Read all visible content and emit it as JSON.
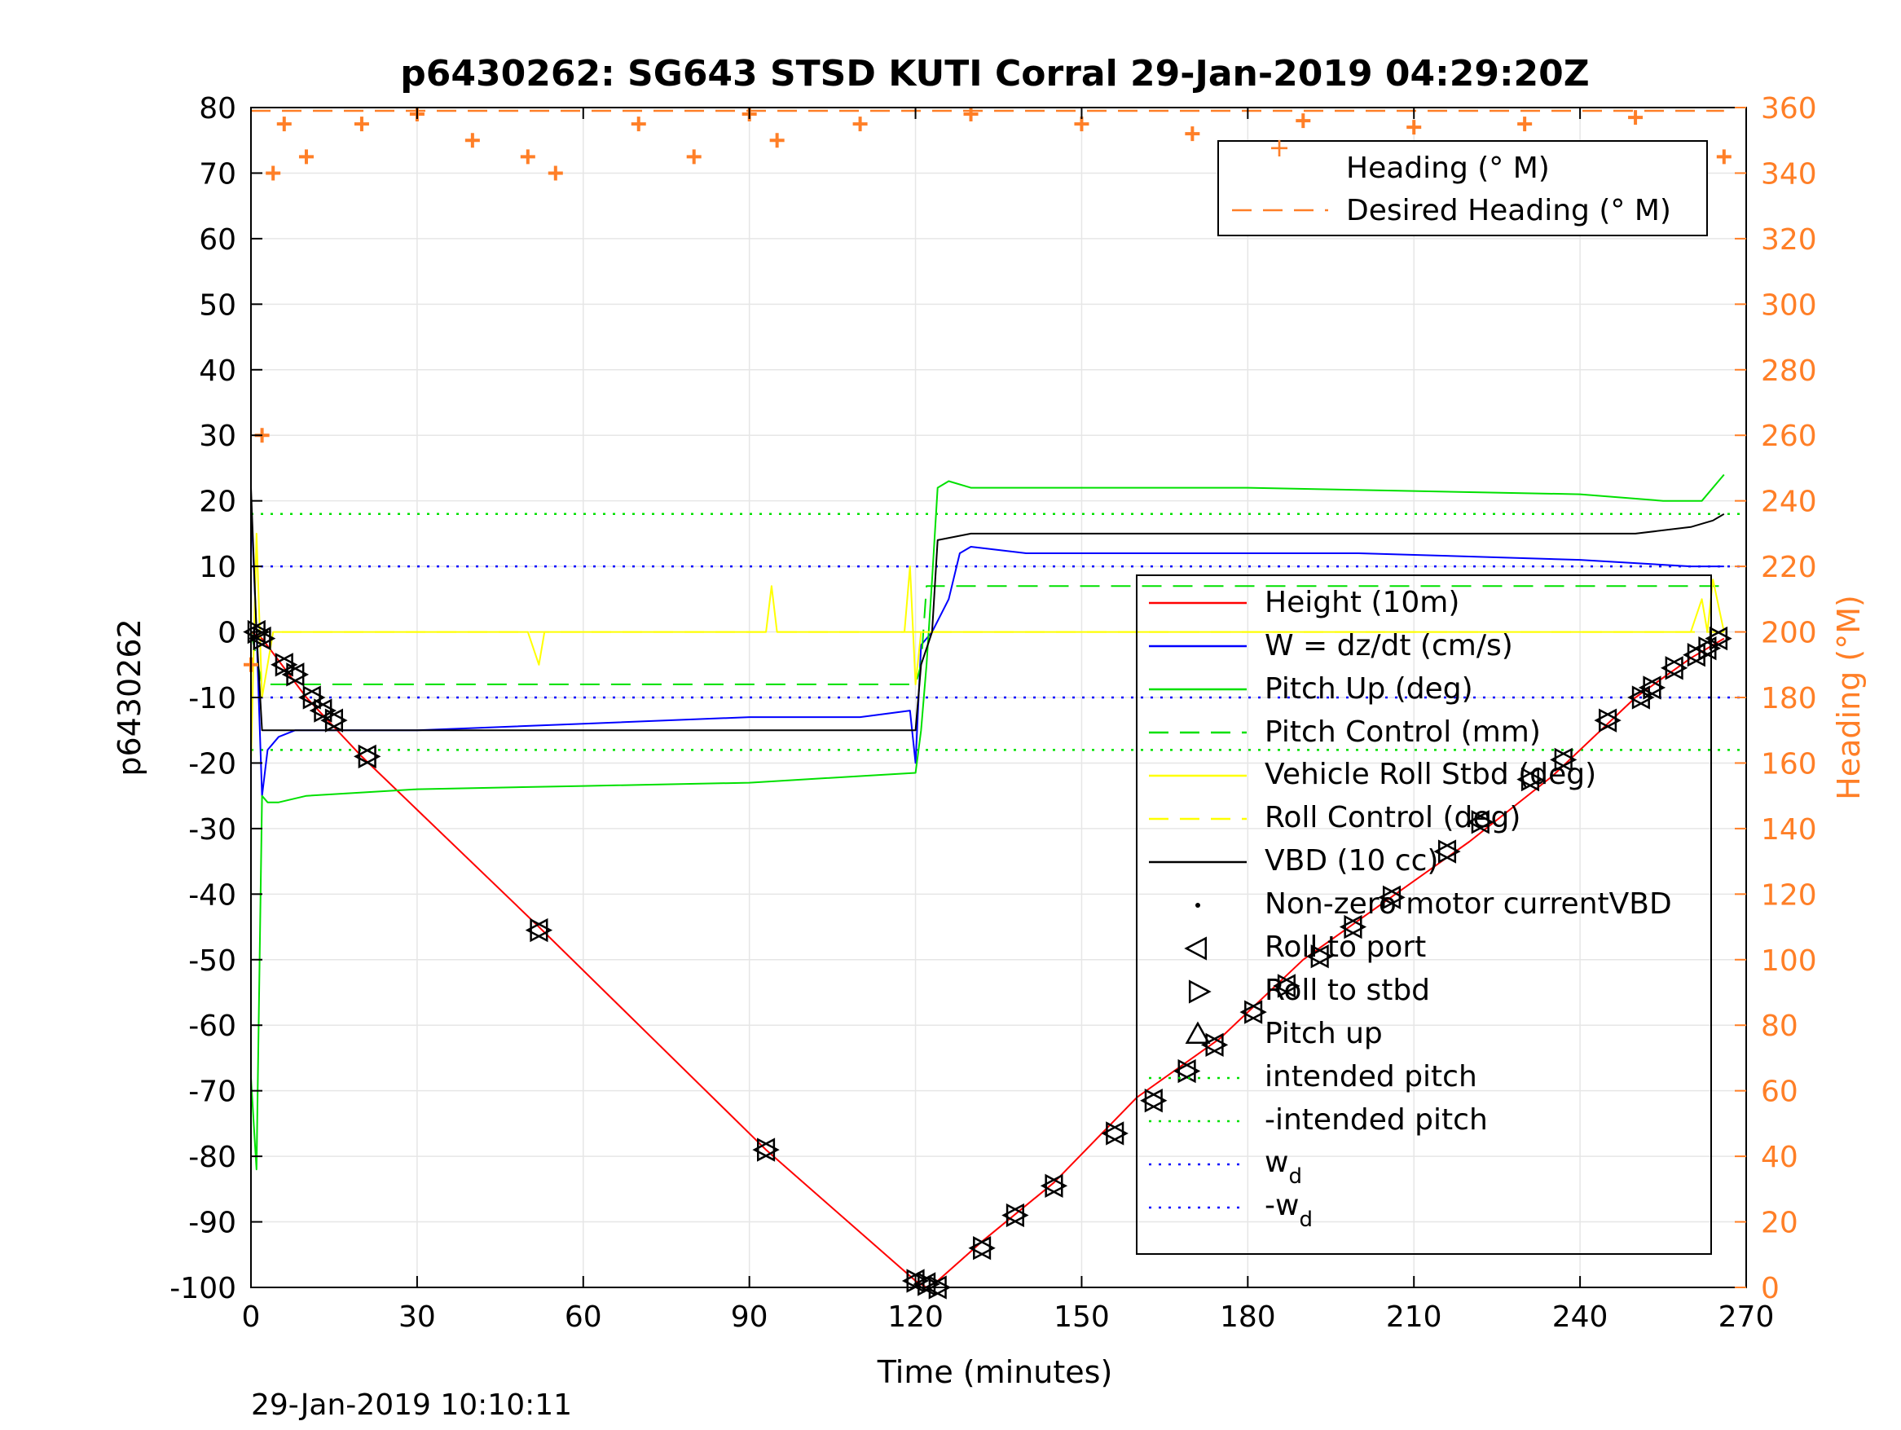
{
  "chart_data": {
    "type": "line",
    "title": "p6430262: SG643 STSD KUTI Corral 29-Jan-2019 04:29:20Z",
    "xlabel": "Time (minutes)",
    "ylabel": "p6430262",
    "y2label": "Heading (°M)",
    "footer": "29-Jan-2019 10:10:11",
    "xlim": [
      0,
      270
    ],
    "ylim": [
      -100,
      80
    ],
    "y2lim": [
      0,
      360
    ],
    "xticks": [
      0,
      30,
      60,
      90,
      120,
      150,
      180,
      210,
      240,
      270
    ],
    "yticks": [
      -100,
      -90,
      -80,
      -70,
      -60,
      -50,
      -40,
      -30,
      -20,
      -10,
      0,
      10,
      20,
      30,
      40,
      50,
      60,
      70,
      80
    ],
    "y2ticks": [
      0,
      20,
      40,
      60,
      80,
      100,
      120,
      140,
      160,
      180,
      200,
      220,
      240,
      260,
      280,
      300,
      320,
      340,
      360
    ],
    "grid": true,
    "colors": {
      "heading": "#ff7f27",
      "height": "#ff0000",
      "w": "#0000ff",
      "pitch": "#00e000",
      "roll": "#ffff00",
      "vbd": "#000000"
    },
    "legend_top": {
      "placement": "top-right",
      "entries": [
        "Heading (° M)",
        "Desired Heading (° M)"
      ]
    },
    "legend_main": {
      "placement": "right",
      "entries": [
        "Height (10m)",
        "W = dz/dt (cm/s)",
        "Pitch Up (deg)",
        "Pitch Control (mm)",
        "Vehicle Roll Stbd (deg)",
        "Roll Control (deg)",
        "VBD (10 cc)",
        "Non-zero motor currentVBD",
        "Roll to port",
        "Roll to stbd",
        "Pitch up",
        "intended pitch",
        "-intended pitch",
        "w",
        "-w"
      ],
      "subscript": "d"
    },
    "series": [
      {
        "name": "Height (10m)",
        "axis": "left",
        "x": [
          0,
          2,
          10,
          20,
          52,
          93,
          120,
          122,
          124,
          132,
          145,
          160,
          175,
          190,
          205,
          220,
          235,
          250,
          260,
          266
        ],
        "y": [
          0,
          -1,
          -10,
          -19,
          -45,
          -79,
          -99,
          -100,
          -99,
          -93,
          -84,
          -71,
          -62,
          -50,
          -41,
          -32,
          -22,
          -10,
          -4,
          -1
        ]
      },
      {
        "name": "W = dz/dt (cm/s)",
        "axis": "left",
        "x": [
          0,
          1,
          2,
          3,
          5,
          8,
          15,
          30,
          60,
          90,
          110,
          119,
          120,
          121,
          123,
          126,
          128,
          130,
          140,
          160,
          180,
          200,
          220,
          240,
          250,
          260,
          266
        ],
        "y": [
          20,
          0,
          -25,
          -18,
          -16,
          -15,
          -15,
          -15,
          -14,
          -13,
          -13,
          -12,
          -20,
          -2,
          0,
          5,
          12,
          13,
          12,
          12,
          12,
          12,
          11.5,
          11,
          10.5,
          10,
          10
        ]
      },
      {
        "name": "Pitch Up (deg)",
        "axis": "left",
        "x": [
          0,
          1,
          2,
          3,
          5,
          10,
          30,
          60,
          90,
          110,
          120,
          121,
          122,
          123,
          124,
          126,
          130,
          150,
          180,
          210,
          240,
          255,
          262,
          265,
          266
        ],
        "y": [
          -68,
          -82,
          -25,
          -26,
          -26,
          -25,
          -24,
          -23.5,
          -23,
          -22,
          -21.5,
          -15,
          -5,
          8,
          22,
          23,
          22,
          22,
          22,
          21.5,
          21,
          20,
          20,
          23,
          24
        ]
      },
      {
        "name": "Pitch Control (mm)",
        "axis": "left",
        "x": [
          0,
          2,
          3,
          120,
          121,
          122,
          266
        ],
        "y": [
          0,
          -8,
          -8,
          -8,
          -5,
          7,
          7
        ]
      },
      {
        "name": "Vehicle Roll Stbd (deg)",
        "axis": "left",
        "x": [
          0,
          1,
          2,
          4,
          6,
          8,
          10,
          20,
          50,
          52,
          53,
          90,
          93,
          94,
          95,
          118,
          119,
          120,
          121,
          122,
          124,
          130,
          140,
          150,
          160,
          170,
          180,
          190,
          200,
          210,
          220,
          230,
          240,
          250,
          260,
          262,
          263,
          264,
          266
        ],
        "y": [
          -20,
          15,
          -10,
          0,
          0,
          0,
          0,
          0,
          0,
          -5,
          0,
          0,
          0,
          7,
          0,
          0,
          10,
          -8,
          0,
          0,
          0,
          0,
          0,
          0,
          0,
          0,
          0,
          0,
          0,
          0,
          0,
          0,
          0,
          0,
          0,
          5,
          0,
          8,
          0
        ]
      },
      {
        "name": "Roll Control (deg)",
        "axis": "left",
        "x": [
          0,
          266
        ],
        "y": [
          0,
          0
        ]
      },
      {
        "name": "VBD (10 cc)",
        "axis": "left",
        "x": [
          0,
          1,
          2,
          120,
          121,
          123,
          124,
          130,
          250,
          260,
          264,
          266
        ],
        "y": [
          22,
          0,
          -15,
          -15,
          -5,
          0,
          14,
          15,
          15,
          16,
          17,
          18
        ]
      },
      {
        "name": "Heading (° M)",
        "axis": "right",
        "x": [
          0,
          2,
          4,
          6,
          10,
          20,
          30,
          40,
          50,
          55,
          70,
          80,
          90,
          95,
          110,
          130,
          150,
          170,
          190,
          210,
          230,
          250,
          266
        ],
        "y": [
          190,
          260,
          340,
          355,
          345,
          355,
          358,
          350,
          345,
          340,
          355,
          345,
          358,
          350,
          355,
          358,
          355,
          352,
          356,
          354,
          355,
          357,
          345
        ]
      },
      {
        "name": "Desired Heading (° M)",
        "axis": "right",
        "x": [
          0,
          266
        ],
        "y": [
          359,
          359
        ]
      },
      {
        "name": "intended pitch",
        "axis": "left",
        "x": [
          0,
          270
        ],
        "y": [
          18,
          18
        ]
      },
      {
        "name": "-intended pitch",
        "axis": "left",
        "x": [
          0,
          270
        ],
        "y": [
          -18,
          -18
        ]
      },
      {
        "name": "w",
        "axis": "left",
        "x": [
          0,
          270
        ],
        "y": [
          10,
          10
        ]
      },
      {
        "name": "-w",
        "axis": "left",
        "x": [
          0,
          270
        ],
        "y": [
          -10,
          -10
        ]
      }
    ],
    "markers": [
      {
        "x": 1,
        "y": 0
      },
      {
        "x": 2,
        "y": -1
      },
      {
        "x": 6,
        "y": -5
      },
      {
        "x": 8,
        "y": -6.5
      },
      {
        "x": 11,
        "y": -10
      },
      {
        "x": 13,
        "y": -12
      },
      {
        "x": 15,
        "y": -13.5
      },
      {
        "x": 21,
        "y": -19
      },
      {
        "x": 52,
        "y": -45.5
      },
      {
        "x": 93,
        "y": -79
      },
      {
        "x": 120,
        "y": -99
      },
      {
        "x": 122,
        "y": -99.5
      },
      {
        "x": 124,
        "y": -100
      },
      {
        "x": 132,
        "y": -94
      },
      {
        "x": 138,
        "y": -89
      },
      {
        "x": 145,
        "y": -84.5
      },
      {
        "x": 156,
        "y": -76.5
      },
      {
        "x": 163,
        "y": -71.5
      },
      {
        "x": 169,
        "y": -67
      },
      {
        "x": 174,
        "y": -63
      },
      {
        "x": 181,
        "y": -58
      },
      {
        "x": 187,
        "y": -54
      },
      {
        "x": 193,
        "y": -49.5
      },
      {
        "x": 199,
        "y": -45
      },
      {
        "x": 206,
        "y": -40.5
      },
      {
        "x": 216,
        "y": -33.5
      },
      {
        "x": 222,
        "y": -29
      },
      {
        "x": 231,
        "y": -22.5
      },
      {
        "x": 237,
        "y": -19.5
      },
      {
        "x": 245,
        "y": -13.5
      },
      {
        "x": 251,
        "y": -10
      },
      {
        "x": 253,
        "y": -8.5
      },
      {
        "x": 257,
        "y": -5.5
      },
      {
        "x": 261,
        "y": -3.5
      },
      {
        "x": 263,
        "y": -2.5
      },
      {
        "x": 265,
        "y": -1
      }
    ]
  }
}
